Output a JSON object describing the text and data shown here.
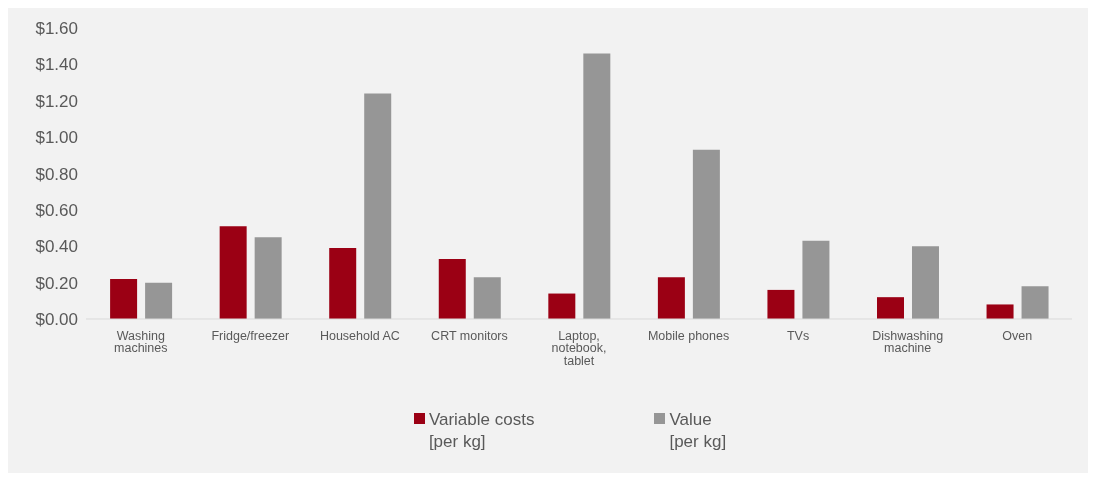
{
  "chart_data": {
    "type": "bar",
    "categories": [
      "Washing machines",
      "Fridge/freezer",
      "Household AC",
      "CRT monitors",
      "Laptop, notebook, tablet",
      "Mobile phones",
      "TVs",
      "Dishwashing machine",
      "Oven"
    ],
    "series": [
      {
        "name": "Variable costs\n[per kg]",
        "color": "#9b0014",
        "values": [
          0.22,
          0.51,
          0.39,
          0.33,
          0.14,
          0.23,
          0.16,
          0.12,
          0.08
        ]
      },
      {
        "name": "Value\n[per kg]",
        "color": "#969696",
        "values": [
          0.2,
          0.45,
          1.24,
          0.23,
          1.46,
          0.93,
          0.43,
          0.4,
          0.18
        ]
      }
    ],
    "ylim": [
      0,
      1.6
    ],
    "yticks": [
      {
        "value": 0,
        "label": "$0.00"
      },
      {
        "value": 0.2,
        "label": "$0.20"
      },
      {
        "value": 0.4,
        "label": "$0.40"
      },
      {
        "value": 0.6,
        "label": "$0.60"
      },
      {
        "value": 0.8,
        "label": "$0.80"
      },
      {
        "value": 1,
        "label": "$1.00"
      },
      {
        "value": 1.2,
        "label": "$1.20"
      },
      {
        "value": 1.4,
        "label": "$1.40"
      },
      {
        "value": 1.6,
        "label": "$1.60"
      }
    ],
    "grid": false,
    "legend": "bottom"
  }
}
